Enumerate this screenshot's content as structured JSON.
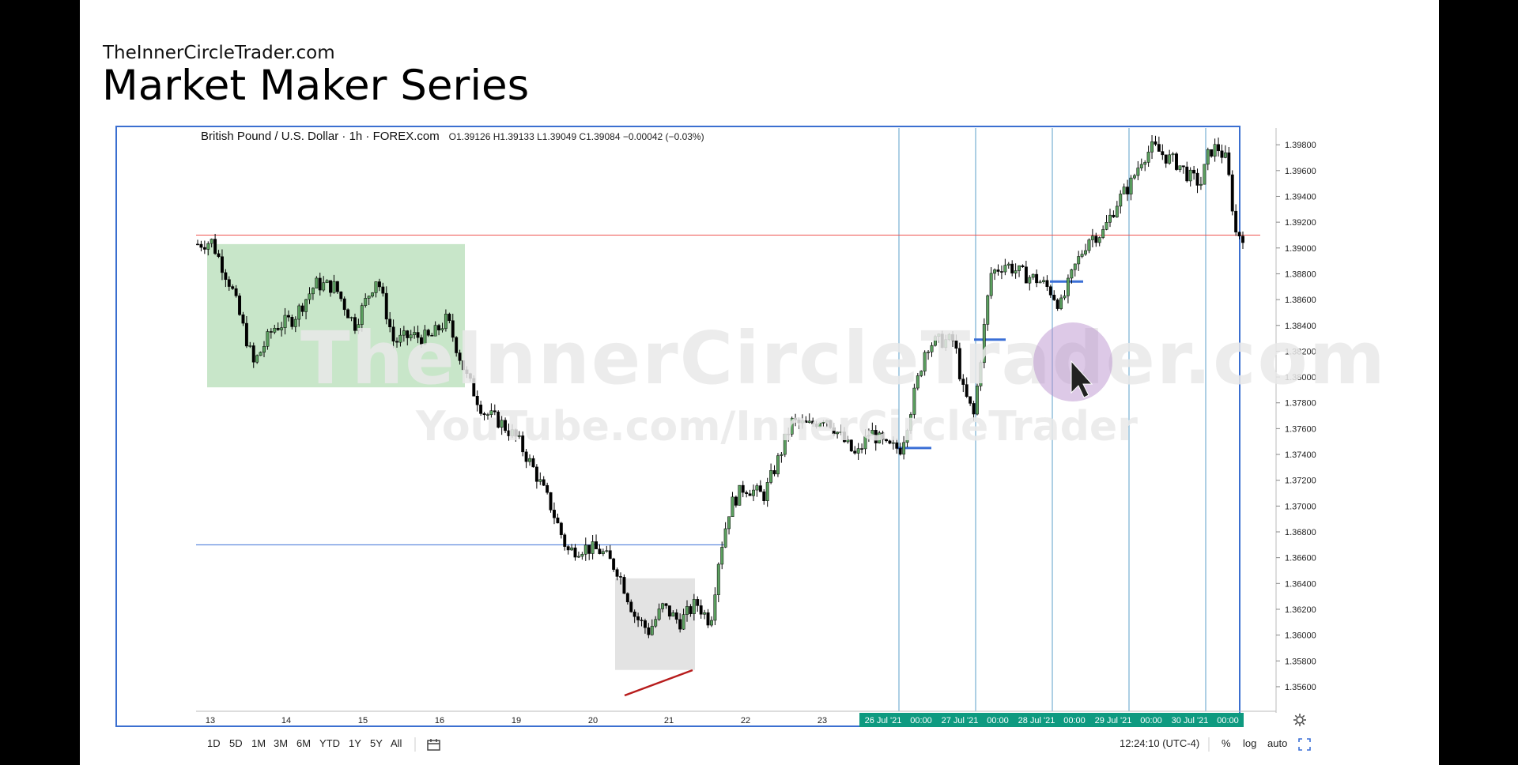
{
  "slide": {
    "site": "TheInnerCircleTrader.com",
    "title": "Market Maker Series"
  },
  "watermark": {
    "line1": "TheInnerCircleTrader.com",
    "line2": "YouTube.com/InnerCircleTrader"
  },
  "chart_header": {
    "symbol": "British Pound / U.S. Dollar · 1h · FOREX.com",
    "ohlc": "O1.39126  H1.39133  L1.39049  C1.39084  −0.00042 (−0.03%)"
  },
  "toolbar": {
    "timeframes": [
      "1D",
      "5D",
      "1M",
      "3M",
      "6M",
      "YTD",
      "1Y",
      "5Y",
      "All"
    ],
    "compare_icon": "calendar-range-icon"
  },
  "status": {
    "time": "12:24:10 (UTC-4)",
    "percent": "%",
    "log": "log",
    "auto": "auto",
    "fullscreen_icon": "fullscreen-icon",
    "settings_icon": "gear-icon"
  },
  "chart_data": {
    "type": "candlestick",
    "symbol": "GBPUSD",
    "interval": "1h",
    "y_ticks": [
      "1.39800",
      "1.39600",
      "1.39400",
      "1.39200",
      "1.39000",
      "1.38800",
      "1.38600",
      "1.38400",
      "1.38200",
      "1.38000",
      "1.37800",
      "1.37600",
      "1.37400",
      "1.37200",
      "1.37000",
      "1.36800",
      "1.36600",
      "1.36400",
      "1.36200",
      "1.36000",
      "1.35800",
      "1.35600"
    ],
    "ylim": [
      1.3552,
      1.3985
    ],
    "x_ticks": [
      "13",
      "14",
      "15",
      "16",
      "19",
      "20",
      "21",
      "22",
      "23"
    ],
    "x_ticks_highlighted": [
      "26 Jul '21",
      "00:00",
      "27 Jul '21",
      "00:00",
      "28 Jul '21",
      "00:00",
      "29 Jul '21",
      "00:00",
      "30 Jul '21",
      "00:00"
    ],
    "price_path": [
      [
        0,
        1.3903
      ],
      [
        0.5,
        1.3905
      ],
      [
        1.2,
        1.387
      ],
      [
        2.0,
        1.381
      ],
      [
        2.7,
        1.3838
      ],
      [
        3.4,
        1.3845
      ],
      [
        4.2,
        1.3872
      ],
      [
        4.9,
        1.387
      ],
      [
        5.6,
        1.384
      ],
      [
        6.4,
        1.3878
      ],
      [
        7.0,
        1.3827
      ],
      [
        7.6,
        1.3832
      ],
      [
        8.3,
        1.383
      ],
      [
        8.9,
        1.3845
      ],
      [
        9.6,
        1.38
      ],
      [
        10.2,
        1.3773
      ],
      [
        10.8,
        1.3765
      ],
      [
        11.4,
        1.3752
      ],
      [
        12.0,
        1.3728
      ],
      [
        12.6,
        1.37
      ],
      [
        13.2,
        1.3665
      ],
      [
        13.8,
        1.3668
      ],
      [
        14.4,
        1.3665
      ],
      [
        15.0,
        1.365
      ],
      [
        15.6,
        1.3615
      ],
      [
        16.1,
        1.3603
      ],
      [
        16.6,
        1.3622
      ],
      [
        17.2,
        1.361
      ],
      [
        17.8,
        1.3625
      ],
      [
        18.3,
        1.361
      ],
      [
        18.6,
        1.366
      ],
      [
        19.0,
        1.37
      ],
      [
        19.5,
        1.3715
      ],
      [
        20.2,
        1.3708
      ],
      [
        20.7,
        1.3735
      ],
      [
        21.2,
        1.3765
      ],
      [
        21.8,
        1.3762
      ],
      [
        22.4,
        1.377
      ],
      [
        23.0,
        1.3752
      ],
      [
        23.5,
        1.3738
      ],
      [
        24.0,
        1.3758
      ],
      [
        24.6,
        1.3745
      ],
      [
        25.1,
        1.3745
      ],
      [
        25.5,
        1.378
      ],
      [
        26.0,
        1.3825
      ],
      [
        26.5,
        1.3828
      ],
      [
        27.0,
        1.3828
      ],
      [
        27.3,
        1.379
      ],
      [
        27.7,
        1.377
      ],
      [
        28.0,
        1.3826
      ],
      [
        28.3,
        1.388
      ],
      [
        28.8,
        1.3888
      ],
      [
        29.4,
        1.388
      ],
      [
        30.0,
        1.3875
      ],
      [
        30.4,
        1.3868
      ],
      [
        30.8,
        1.3855
      ],
      [
        31.3,
        1.3885
      ],
      [
        31.8,
        1.3908
      ],
      [
        32.3,
        1.3912
      ],
      [
        32.8,
        1.3935
      ],
      [
        33.3,
        1.395
      ],
      [
        33.7,
        1.397
      ],
      [
        34.1,
        1.3978
      ],
      [
        34.6,
        1.397
      ],
      [
        35.0,
        1.3965
      ],
      [
        35.4,
        1.3955
      ],
      [
        35.8,
        1.395
      ],
      [
        36.1,
        1.3975
      ],
      [
        36.4,
        1.3978
      ],
      [
        36.7,
        1.3968
      ],
      [
        36.9,
        1.394
      ],
      [
        37.0,
        1.3912
      ],
      [
        37.3,
        1.391
      ]
    ],
    "levels": [
      {
        "price": 1.391,
        "color": "#ef5350",
        "style": "horizontal"
      },
      {
        "price": 1.367,
        "color": "#3a6fd6",
        "style": "horizontal"
      }
    ],
    "zones": [
      {
        "label": "",
        "color": "#c8e6c9",
        "from_price": 1.3792,
        "to_price": 1.3903
      },
      {
        "label": "",
        "color": "#e3e3e3",
        "from_price": 1.3573,
        "to_price": 1.3644
      }
    ],
    "legend": "none",
    "grid": false
  }
}
